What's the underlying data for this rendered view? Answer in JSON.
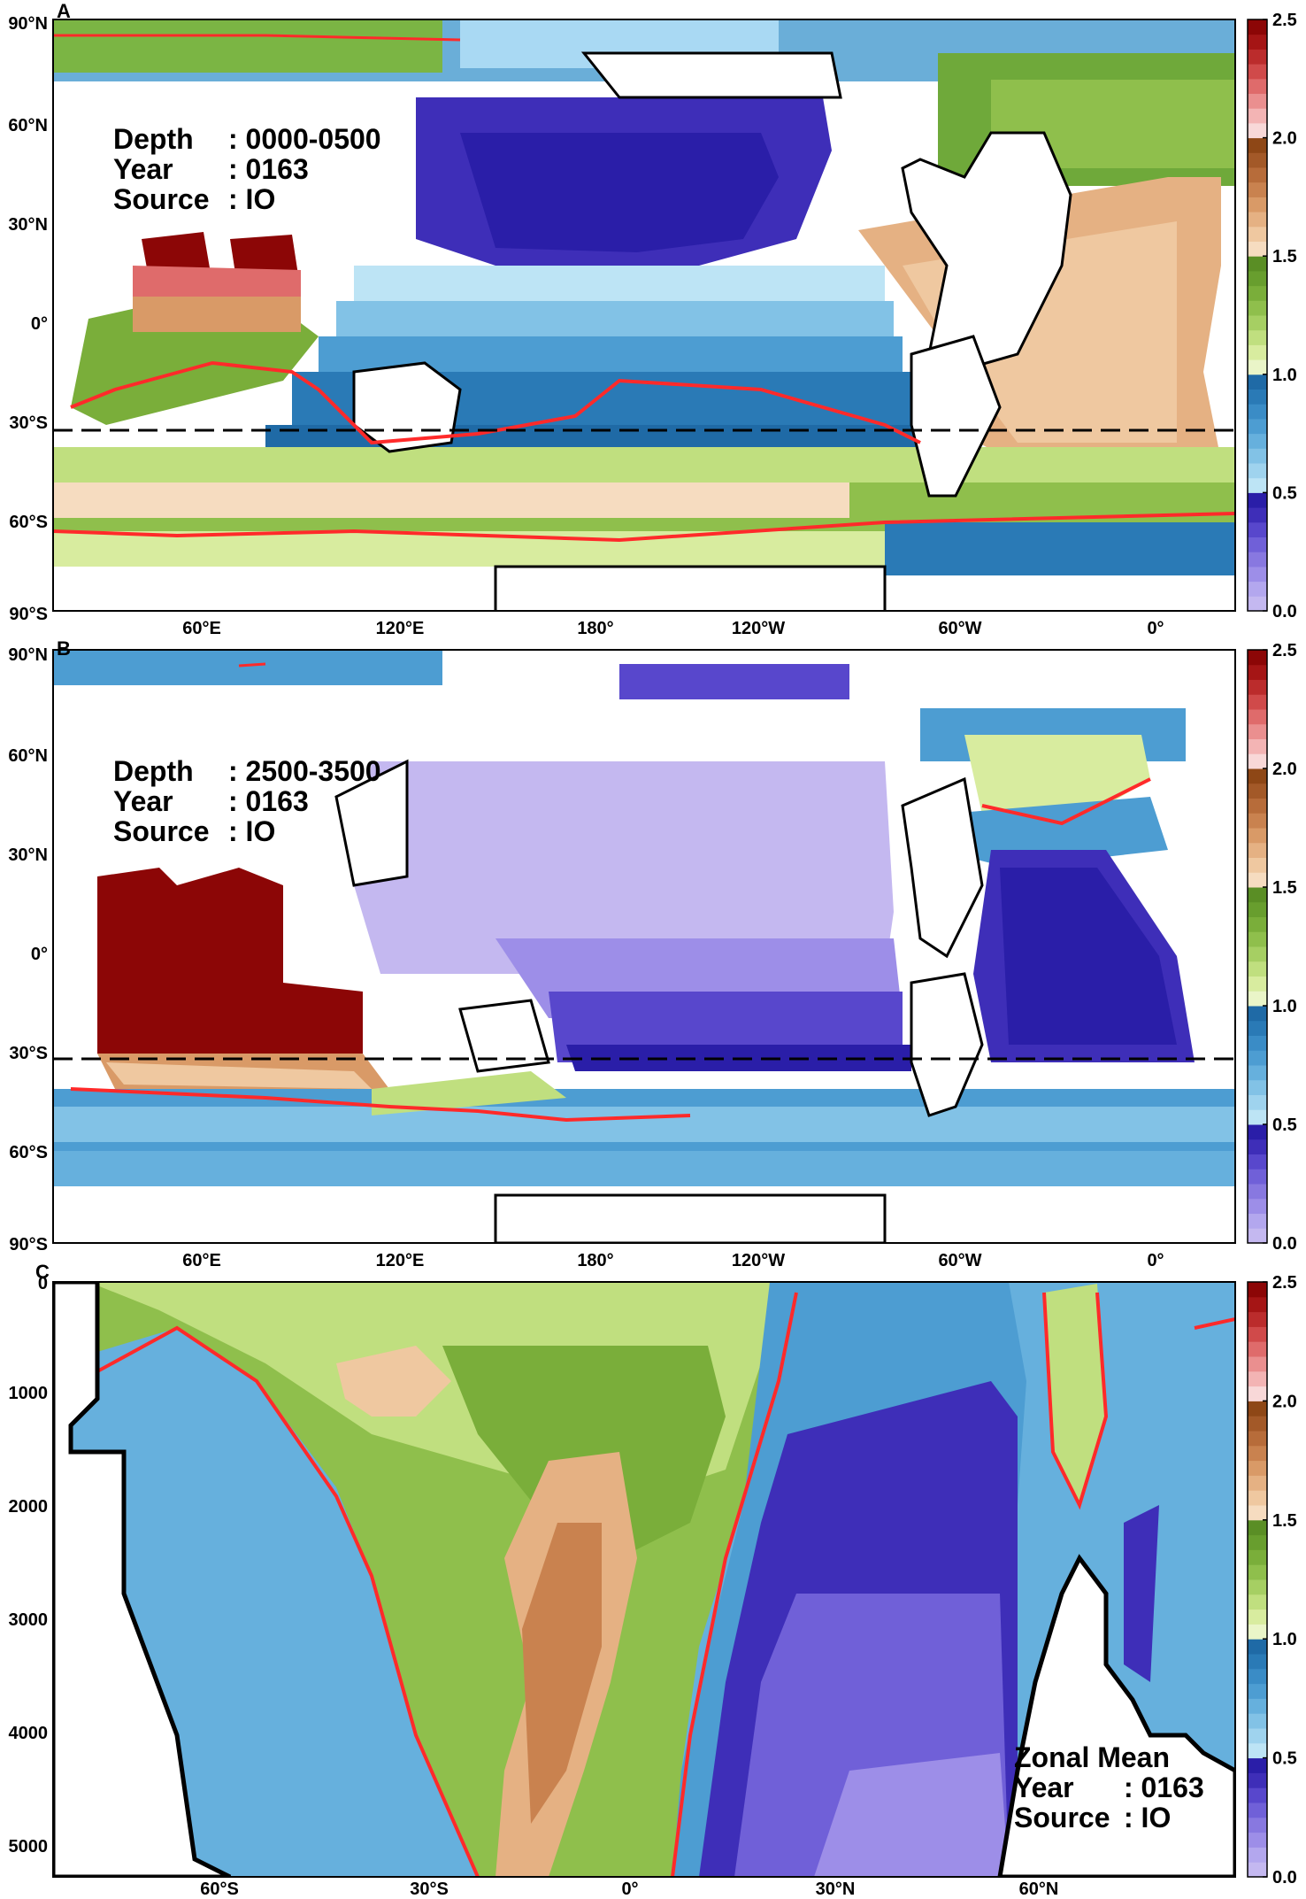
{
  "panels": {
    "A": {
      "letter": "A",
      "info": [
        {
          "key": "Depth",
          "value": ": 0000-0500"
        },
        {
          "key": "Year",
          "value": ": 0163"
        },
        {
          "key": "Source",
          "value": ": IO"
        }
      ],
      "lat_ticks": [
        "90°N",
        "60°N",
        "30°N",
        "0°",
        "30°S",
        "60°S",
        "90°S"
      ],
      "lon_ticks": [
        "60°E",
        "120°E",
        "180°",
        "120°W",
        "60°W",
        "0°"
      ]
    },
    "B": {
      "letter": "B",
      "info": [
        {
          "key": "Depth",
          "value": ": 2500-3500"
        },
        {
          "key": "Year",
          "value": ": 0163"
        },
        {
          "key": "Source",
          "value": ": IO"
        }
      ],
      "lat_ticks": [
        "90°N",
        "60°N",
        "30°N",
        "0°",
        "30°S",
        "60°S",
        "90°S"
      ],
      "lon_ticks": [
        "60°E",
        "120°E",
        "180°",
        "120°W",
        "60°W",
        "0°"
      ]
    },
    "C": {
      "letter": "C",
      "info": [
        {
          "key": "Zonal Mean",
          "value": ""
        },
        {
          "key": "Year",
          "value": ": 0163"
        },
        {
          "key": "Source",
          "value": ": IO"
        }
      ],
      "depth_ticks": [
        "0",
        "1000",
        "2000",
        "3000",
        "4000",
        "5000"
      ],
      "lat_ticks": [
        "60°S",
        "30°S",
        "0°",
        "30°N",
        "60°N"
      ]
    }
  },
  "colorbar": {
    "labels": [
      "2.5",
      "2.0",
      "1.5",
      "1.0",
      "0.5",
      "0.0"
    ],
    "colors": [
      "#a6d4f5",
      "#a6d4f5",
      "#c4b8f0",
      "#b3a7ee",
      "#9d8ee8",
      "#8878e0",
      "#7060d8",
      "#5847cc",
      "#3e2eb8",
      "#2a1ea8",
      "#bde4f5",
      "#9fd3ee",
      "#82c2e6",
      "#66b0dd",
      "#4d9dd2",
      "#3a8cc6",
      "#2a7ab6",
      "#1f6aa6",
      "#eaf5c8",
      "#d8ec9f",
      "#c0df7f",
      "#a6cf63",
      "#8fbf4c",
      "#7aae3a",
      "#689e2e",
      "#5a8e25",
      "#f6dcc0",
      "#efc8a0",
      "#e5b183",
      "#d99a67",
      "#c9824f",
      "#b76c3a",
      "#a35928",
      "#8e4716",
      "#f8d8d8",
      "#f3b4b4",
      "#ea8f8f",
      "#df6b6b",
      "#d04a4a",
      "#bb2c2c",
      "#a51515",
      "#8c0606"
    ]
  }
}
